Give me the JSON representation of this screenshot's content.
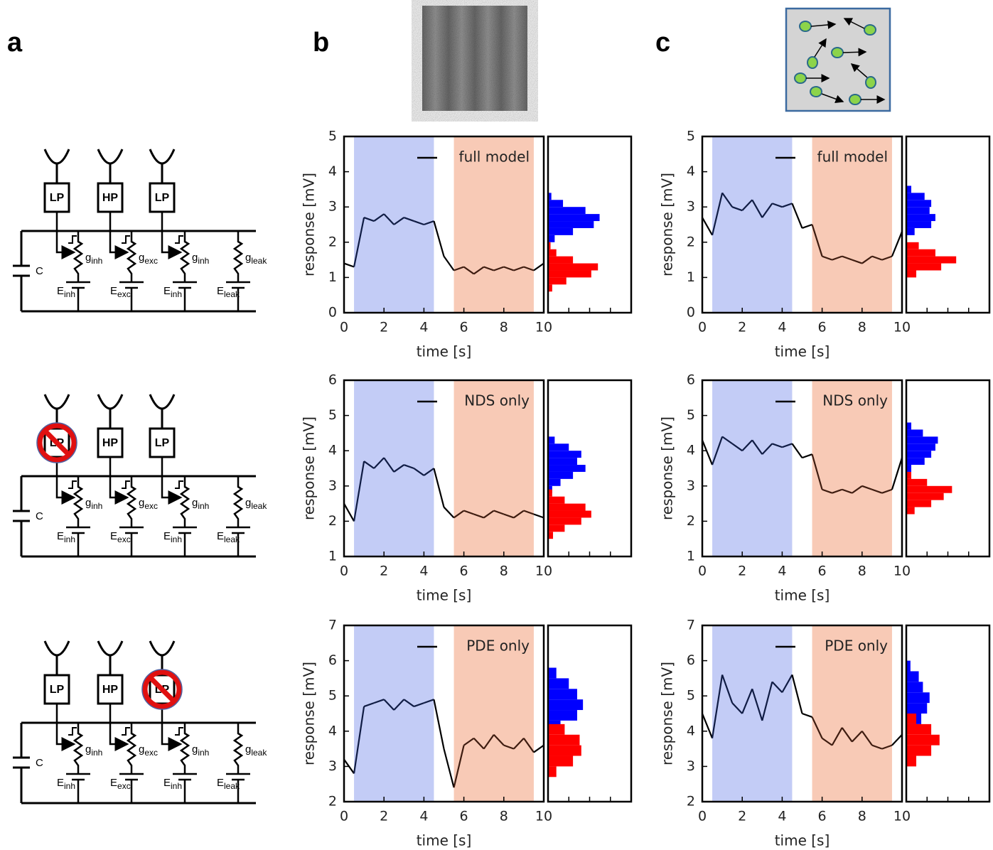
{
  "panel_labels": [
    "a",
    "b",
    "c"
  ],
  "circuits": [
    {
      "blocks": [
        {
          "label": "LP",
          "blocked": false
        },
        {
          "label": "HP",
          "blocked": false
        },
        {
          "label": "LP",
          "blocked": false
        }
      ],
      "capacitor": "C",
      "conductances": [
        {
          "symbol": "g",
          "sub": "inh"
        },
        {
          "symbol": "g",
          "sub": "exc"
        },
        {
          "symbol": "g",
          "sub": "inh"
        },
        {
          "symbol": "g",
          "sub": "leak"
        }
      ],
      "reversals": [
        {
          "symbol": "E",
          "sub": "inh"
        },
        {
          "symbol": "E",
          "sub": "exc"
        },
        {
          "symbol": "E",
          "sub": "inh"
        },
        {
          "symbol": "E",
          "sub": "leak"
        }
      ]
    },
    {
      "blocks": [
        {
          "label": "LP",
          "blocked": true
        },
        {
          "label": "HP",
          "blocked": false
        },
        {
          "label": "LP",
          "blocked": false
        }
      ],
      "capacitor": "C",
      "conductances": [
        {
          "symbol": "g",
          "sub": "inh"
        },
        {
          "symbol": "g",
          "sub": "exc"
        },
        {
          "symbol": "g",
          "sub": "inh"
        },
        {
          "symbol": "g",
          "sub": "leak"
        }
      ],
      "reversals": [
        {
          "symbol": "E",
          "sub": "inh"
        },
        {
          "symbol": "E",
          "sub": "exc"
        },
        {
          "symbol": "E",
          "sub": "inh"
        },
        {
          "symbol": "E",
          "sub": "leak"
        }
      ]
    },
    {
      "blocks": [
        {
          "label": "LP",
          "blocked": false
        },
        {
          "label": "HP",
          "blocked": false
        },
        {
          "label": "LP",
          "blocked": true
        }
      ],
      "capacitor": "C",
      "conductances": [
        {
          "symbol": "g",
          "sub": "inh"
        },
        {
          "symbol": "g",
          "sub": "exc"
        },
        {
          "symbol": "g",
          "sub": "inh"
        },
        {
          "symbol": "g",
          "sub": "leak"
        }
      ],
      "reversals": [
        {
          "symbol": "E",
          "sub": "inh"
        },
        {
          "symbol": "E",
          "sub": "exc"
        },
        {
          "symbol": "E",
          "sub": "inh"
        },
        {
          "symbol": "E",
          "sub": "leak"
        }
      ]
    }
  ],
  "chart_data": [
    {
      "type": "line",
      "xlabel": "time [s]",
      "ylabel": "response [mV]",
      "legend": "upper right",
      "xlim": [
        0,
        10
      ],
      "xticks": [
        0,
        2,
        4,
        6,
        8,
        10
      ],
      "ylim": [
        0,
        5
      ],
      "yticks": [
        0,
        1,
        2,
        3,
        4,
        5
      ],
      "x": [
        0,
        0.5,
        1,
        1.5,
        2,
        2.5,
        3,
        3.5,
        4,
        4.5,
        5,
        5.5,
        6,
        6.5,
        7,
        7.5,
        8,
        8.5,
        9,
        9.5,
        10
      ],
      "series": [
        {
          "name": "full model",
          "color": "#000000",
          "values": [
            1.4,
            1.3,
            2.7,
            2.6,
            2.8,
            2.5,
            2.7,
            2.6,
            2.5,
            2.6,
            1.6,
            1.2,
            1.3,
            1.1,
            1.3,
            1.2,
            1.3,
            1.2,
            1.3,
            1.2,
            1.4
          ]
        }
      ],
      "spans": [
        {
          "x": [
            0.5,
            4.5
          ],
          "color": "#c3ccf6",
          "line_color": "#101c44"
        },
        {
          "x": [
            5.5,
            9.5
          ],
          "color": "#f8cab6",
          "line_color": "#3e1c10"
        }
      ],
      "hist_xlim": [
        0,
        1
      ],
      "hist_xticks": [
        0.25,
        0.5,
        0.75
      ],
      "histograms": [
        {
          "color": "#0000ff",
          "bins": [
            2.0,
            2.2,
            2.4,
            2.6,
            2.8,
            3.0,
            3.2,
            3.4
          ],
          "counts": [
            0.08,
            0.3,
            0.55,
            0.62,
            0.45,
            0.18,
            0.04
          ]
        },
        {
          "color": "#ff0000",
          "bins": [
            0.6,
            0.8,
            1.0,
            1.2,
            1.4,
            1.6,
            1.8,
            2.0
          ],
          "counts": [
            0.05,
            0.22,
            0.52,
            0.6,
            0.3,
            0.1,
            0.03
          ]
        }
      ]
    },
    {
      "type": "line",
      "xlabel": "time [s]",
      "ylabel": "response [mV]",
      "legend": "upper right",
      "xlim": [
        0,
        10
      ],
      "xticks": [
        0,
        2,
        4,
        6,
        8,
        10
      ],
      "ylim": [
        1,
        6
      ],
      "yticks": [
        1,
        2,
        3,
        4,
        5,
        6
      ],
      "x": [
        0,
        0.5,
        1,
        1.5,
        2,
        2.5,
        3,
        3.5,
        4,
        4.5,
        5,
        5.5,
        6,
        6.5,
        7,
        7.5,
        8,
        8.5,
        9,
        9.5,
        10
      ],
      "series": [
        {
          "name": "NDS only",
          "color": "#000000",
          "values": [
            2.5,
            2.0,
            3.7,
            3.5,
            3.8,
            3.4,
            3.6,
            3.5,
            3.3,
            3.5,
            2.4,
            2.1,
            2.3,
            2.2,
            2.1,
            2.3,
            2.2,
            2.1,
            2.3,
            2.2,
            2.1
          ]
        }
      ],
      "spans": [
        {
          "x": [
            0.5,
            4.5
          ],
          "color": "#c3ccf6",
          "line_color": "#101c44"
        },
        {
          "x": [
            5.5,
            9.5
          ],
          "color": "#f8cab6",
          "line_color": "#3e1c10"
        }
      ],
      "hist_xlim": [
        0,
        1
      ],
      "hist_xticks": [
        0.25,
        0.5,
        0.75
      ],
      "histograms": [
        {
          "color": "#0000ff",
          "bins": [
            2.8,
            3.0,
            3.2,
            3.4,
            3.6,
            3.8,
            4.0,
            4.2,
            4.4
          ],
          "counts": [
            0.05,
            0.15,
            0.3,
            0.45,
            0.35,
            0.4,
            0.25,
            0.08
          ]
        },
        {
          "color": "#ff0000",
          "bins": [
            1.5,
            1.7,
            1.9,
            2.1,
            2.3,
            2.5,
            2.7,
            2.9
          ],
          "counts": [
            0.06,
            0.2,
            0.4,
            0.52,
            0.45,
            0.2,
            0.05
          ]
        }
      ]
    },
    {
      "type": "line",
      "xlabel": "time [s]",
      "ylabel": "response [mV]",
      "legend": "upper right",
      "xlim": [
        0,
        10
      ],
      "xticks": [
        0,
        2,
        4,
        6,
        8,
        10
      ],
      "ylim": [
        2,
        7
      ],
      "yticks": [
        2,
        3,
        4,
        5,
        6,
        7
      ],
      "x": [
        0,
        0.5,
        1,
        1.5,
        2,
        2.5,
        3,
        3.5,
        4,
        4.5,
        5,
        5.5,
        6,
        6.5,
        7,
        7.5,
        8,
        8.5,
        9,
        9.5,
        10
      ],
      "series": [
        {
          "name": "PDE only",
          "color": "#000000",
          "values": [
            3.2,
            2.8,
            4.7,
            4.8,
            4.9,
            4.6,
            4.9,
            4.7,
            4.8,
            4.9,
            3.5,
            2.4,
            3.6,
            3.8,
            3.5,
            3.9,
            3.6,
            3.5,
            3.8,
            3.4,
            3.6
          ]
        }
      ],
      "spans": [
        {
          "x": [
            0.5,
            4.5
          ],
          "color": "#c3ccf6",
          "line_color": "#101c44"
        },
        {
          "x": [
            5.5,
            9.5
          ],
          "color": "#f8cab6",
          "line_color": "#3e1c10"
        }
      ],
      "hist_xlim": [
        0,
        1
      ],
      "hist_xticks": [
        0.25,
        0.5,
        0.75
      ],
      "histograms": [
        {
          "color": "#0000ff",
          "bins": [
            4.0,
            4.3,
            4.6,
            4.9,
            5.2,
            5.5,
            5.8
          ],
          "counts": [
            0.15,
            0.35,
            0.42,
            0.35,
            0.25,
            0.1
          ]
        },
        {
          "color": "#ff0000",
          "bins": [
            2.7,
            3.0,
            3.3,
            3.6,
            3.9,
            4.2
          ],
          "counts": [
            0.1,
            0.3,
            0.4,
            0.38,
            0.2
          ]
        }
      ]
    },
    {
      "type": "line",
      "xlabel": "time [s]",
      "ylabel": "response [mV]",
      "legend": "upper right",
      "xlim": [
        0,
        10
      ],
      "xticks": [
        0,
        2,
        4,
        6,
        8,
        10
      ],
      "ylim": [
        0,
        5
      ],
      "yticks": [
        0,
        1,
        2,
        3,
        4,
        5
      ],
      "x": [
        0,
        0.5,
        1,
        1.5,
        2,
        2.5,
        3,
        3.5,
        4,
        4.5,
        5,
        5.5,
        6,
        6.5,
        7,
        7.5,
        8,
        8.5,
        9,
        9.5,
        10
      ],
      "series": [
        {
          "name": "full model",
          "color": "#000000",
          "values": [
            2.7,
            2.2,
            3.4,
            3.0,
            2.9,
            3.2,
            2.7,
            3.1,
            3.0,
            3.1,
            2.4,
            2.5,
            1.6,
            1.5,
            1.6,
            1.5,
            1.4,
            1.6,
            1.5,
            1.6,
            2.3
          ]
        }
      ],
      "spans": [
        {
          "x": [
            0.5,
            4.5
          ],
          "color": "#c3ccf6",
          "line_color": "#101c44"
        },
        {
          "x": [
            5.5,
            9.5
          ],
          "color": "#f8cab6",
          "line_color": "#3e1c10"
        }
      ],
      "hist_xlim": [
        0,
        1
      ],
      "hist_xticks": [
        0.25,
        0.5,
        0.75
      ],
      "histograms": [
        {
          "color": "#0000ff",
          "bins": [
            2.2,
            2.4,
            2.6,
            2.8,
            3.0,
            3.2,
            3.4,
            3.6
          ],
          "counts": [
            0.1,
            0.3,
            0.35,
            0.28,
            0.3,
            0.22,
            0.06
          ]
        },
        {
          "color": "#ff0000",
          "bins": [
            1.0,
            1.2,
            1.4,
            1.6,
            1.8,
            2.0
          ],
          "counts": [
            0.12,
            0.42,
            0.6,
            0.35,
            0.15
          ]
        }
      ]
    },
    {
      "type": "line",
      "xlabel": "time [s]",
      "ylabel": "response [mV]",
      "legend": "upper right",
      "xlim": [
        0,
        10
      ],
      "xticks": [
        0,
        2,
        4,
        6,
        8,
        10
      ],
      "ylim": [
        1,
        6
      ],
      "yticks": [
        1,
        2,
        3,
        4,
        5,
        6
      ],
      "x": [
        0,
        0.5,
        1,
        1.5,
        2,
        2.5,
        3,
        3.5,
        4,
        4.5,
        5,
        5.5,
        6,
        6.5,
        7,
        7.5,
        8,
        8.5,
        9,
        9.5,
        10
      ],
      "series": [
        {
          "name": "NDS only",
          "color": "#000000",
          "values": [
            4.3,
            3.6,
            4.4,
            4.2,
            4.0,
            4.3,
            3.9,
            4.2,
            4.1,
            4.2,
            3.8,
            3.9,
            2.9,
            2.8,
            2.9,
            2.8,
            3.0,
            2.9,
            2.8,
            2.9,
            3.8
          ]
        }
      ],
      "spans": [
        {
          "x": [
            0.5,
            4.5
          ],
          "color": "#c3ccf6",
          "line_color": "#101c44"
        },
        {
          "x": [
            5.5,
            9.5
          ],
          "color": "#f8cab6",
          "line_color": "#3e1c10"
        }
      ],
      "hist_xlim": [
        0,
        1
      ],
      "hist_xticks": [
        0.25,
        0.5,
        0.75
      ],
      "histograms": [
        {
          "color": "#0000ff",
          "bins": [
            3.4,
            3.6,
            3.8,
            4.0,
            4.2,
            4.4,
            4.6,
            4.8
          ],
          "counts": [
            0.06,
            0.22,
            0.3,
            0.35,
            0.38,
            0.2,
            0.06
          ]
        },
        {
          "color": "#ff0000",
          "bins": [
            2.2,
            2.4,
            2.6,
            2.8,
            3.0,
            3.2,
            3.4
          ],
          "counts": [
            0.1,
            0.3,
            0.45,
            0.55,
            0.25,
            0.06
          ]
        }
      ]
    },
    {
      "type": "line",
      "xlabel": "time [s]",
      "ylabel": "response [mV]",
      "legend": "upper right",
      "xlim": [
        0,
        10
      ],
      "xticks": [
        0,
        2,
        4,
        6,
        8,
        10
      ],
      "ylim": [
        2,
        7
      ],
      "yticks": [
        2,
        3,
        4,
        5,
        6,
        7
      ],
      "x": [
        0,
        0.5,
        1,
        1.5,
        2,
        2.5,
        3,
        3.5,
        4,
        4.5,
        5,
        5.5,
        6,
        6.5,
        7,
        7.5,
        8,
        8.5,
        9,
        9.5,
        10
      ],
      "series": [
        {
          "name": "PDE only",
          "color": "#000000",
          "values": [
            4.5,
            3.8,
            5.6,
            4.8,
            4.5,
            5.2,
            4.3,
            5.4,
            5.1,
            5.6,
            4.5,
            4.4,
            3.8,
            3.6,
            4.1,
            3.7,
            4.0,
            3.6,
            3.5,
            3.6,
            3.9
          ]
        }
      ],
      "spans": [
        {
          "x": [
            0.5,
            4.5
          ],
          "color": "#c3ccf6",
          "line_color": "#101c44"
        },
        {
          "x": [
            5.5,
            9.5
          ],
          "color": "#f8cab6",
          "line_color": "#3e1c10"
        }
      ],
      "hist_xlim": [
        0,
        1
      ],
      "hist_xticks": [
        0.25,
        0.5,
        0.75
      ],
      "histograms": [
        {
          "color": "#0000ff",
          "bins": [
            4.2,
            4.5,
            4.8,
            5.1,
            5.4,
            5.7,
            6.0
          ],
          "counts": [
            0.18,
            0.25,
            0.28,
            0.2,
            0.15,
            0.05
          ]
        },
        {
          "color": "#ff0000",
          "bins": [
            3.0,
            3.3,
            3.6,
            3.9,
            4.2,
            4.5
          ],
          "counts": [
            0.12,
            0.3,
            0.4,
            0.3,
            0.12
          ]
        }
      ]
    }
  ]
}
